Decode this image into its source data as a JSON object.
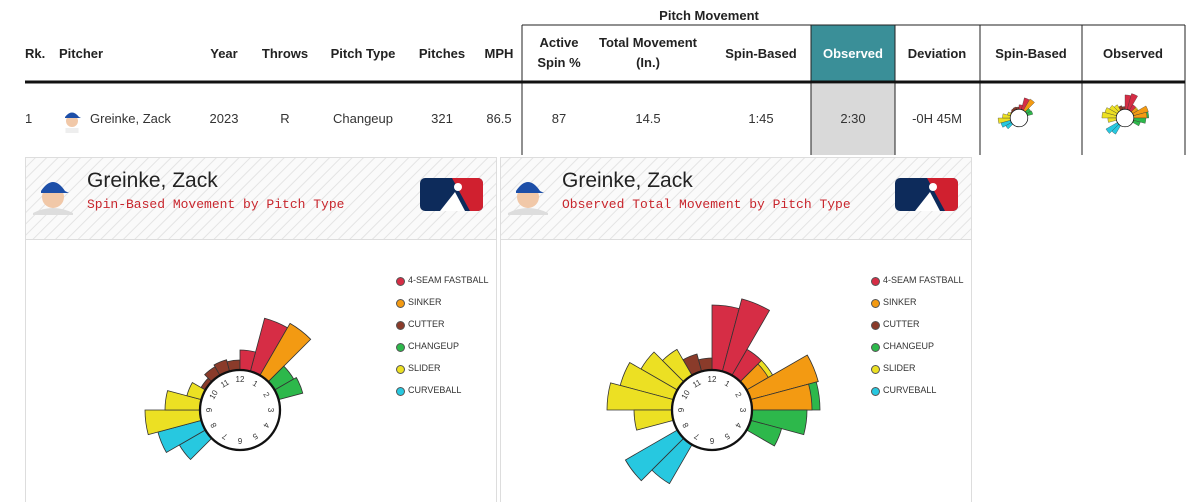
{
  "table": {
    "group_header": "Pitch Movement",
    "columns": [
      "Rk.",
      "Pitcher",
      "Year",
      "Throws",
      "Pitch Type",
      "Pitches",
      "MPH",
      "Active Spin %",
      "Total Movement (In.)",
      "Spin-Based",
      "Observed",
      "Deviation",
      "Spin-Based",
      "Observed"
    ],
    "rows": [
      [
        "1",
        "Greinke, Zack",
        2023,
        "R",
        "Changeup",
        321,
        86.5,
        87,
        14.5,
        "1:45",
        "2:30",
        "-0H 45M"
      ]
    ]
  },
  "panels": [
    {
      "name": "Greinke, Zack",
      "subtitle": "Spin-Based Movement by Pitch Type"
    },
    {
      "name": "Greinke, Zack",
      "subtitle": "Observed Total Movement by Pitch Type"
    }
  ],
  "legend": [
    {
      "label": "4-SEAM FASTBALL",
      "color": "#d62d45"
    },
    {
      "label": "SINKER",
      "color": "#f39a12"
    },
    {
      "label": "CUTTER",
      "color": "#8a3b2a"
    },
    {
      "label": "CHANGEUP",
      "color": "#2db84b"
    },
    {
      "label": "SLIDER",
      "color": "#ece023"
    },
    {
      "label": "CURVEBALL",
      "color": "#27c8e0"
    }
  ],
  "clock_labels": [
    "12",
    "1",
    "2",
    "3",
    "4",
    "5",
    "6",
    "7",
    "8",
    "9",
    "10",
    "11"
  ]
}
